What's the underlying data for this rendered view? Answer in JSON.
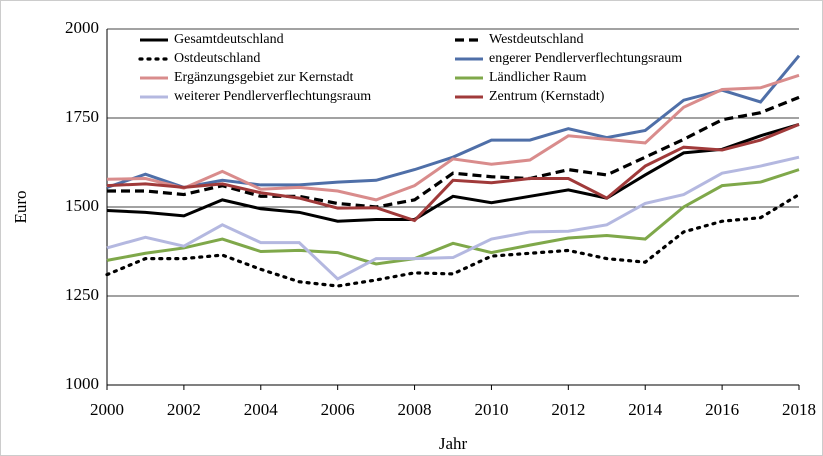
{
  "chart_data": {
    "type": "line",
    "x": [
      2000,
      2001,
      2002,
      2003,
      2004,
      2005,
      2006,
      2007,
      2008,
      2009,
      2010,
      2011,
      2012,
      2013,
      2014,
      2015,
      2016,
      2017,
      2018
    ],
    "xlabel": "Jahr",
    "ylabel": "Euro",
    "xlim": [
      2000,
      2018
    ],
    "xticks": [
      2000,
      2002,
      2004,
      2006,
      2008,
      2010,
      2012,
      2014,
      2016,
      2018
    ],
    "ylim": [
      1000,
      2000
    ],
    "yticks": [
      1000,
      1250,
      1500,
      1750,
      2000
    ],
    "grid": true,
    "series": [
      {
        "name": "Gesamtdeutschland",
        "color": "#000000",
        "style": "solid",
        "values": [
          1490,
          1485,
          1475,
          1520,
          1495,
          1485,
          1460,
          1465,
          1465,
          1530,
          1512,
          1530,
          1548,
          1525,
          1590,
          1652,
          1662,
          1700,
          1732
        ]
      },
      {
        "name": "Westdeutschland",
        "color": "#000000",
        "style": "dashed",
        "values": [
          1545,
          1545,
          1535,
          1560,
          1530,
          1530,
          1510,
          1500,
          1520,
          1595,
          1585,
          1580,
          1605,
          1590,
          1640,
          1690,
          1745,
          1765,
          1808
        ]
      },
      {
        "name": "Ostdeutschland",
        "color": "#000000",
        "style": "dotted",
        "values": [
          1310,
          1355,
          1355,
          1365,
          1325,
          1290,
          1278,
          1295,
          1315,
          1312,
          1362,
          1370,
          1378,
          1355,
          1345,
          1430,
          1460,
          1470,
          1535
        ]
      },
      {
        "name": "engerer Pendlerverflechtungsraum",
        "color": "#4f6fa8",
        "style": "solid",
        "values": [
          1555,
          1592,
          1555,
          1575,
          1562,
          1562,
          1570,
          1575,
          1605,
          1640,
          1688,
          1688,
          1720,
          1695,
          1715,
          1800,
          1828,
          1795,
          1925
        ]
      },
      {
        "name": "Ergänzungsgebiet zur Kernstadt",
        "color": "#d98c8c",
        "style": "solid",
        "values": [
          1578,
          1580,
          1553,
          1600,
          1550,
          1555,
          1545,
          1520,
          1560,
          1635,
          1620,
          1632,
          1700,
          1690,
          1680,
          1780,
          1830,
          1835,
          1870
        ]
      },
      {
        "name": "Ländlicher Raum",
        "color": "#7fa84a",
        "style": "solid",
        "values": [
          1350,
          1370,
          1385,
          1410,
          1375,
          1378,
          1372,
          1340,
          1355,
          1398,
          1372,
          1393,
          1413,
          1420,
          1410,
          1500,
          1560,
          1570,
          1605
        ]
      },
      {
        "name": "weiterer Pendlerverflechtungsraum",
        "color": "#b4b8e0",
        "style": "solid",
        "values": [
          1385,
          1415,
          1390,
          1450,
          1400,
          1400,
          1298,
          1355,
          1355,
          1358,
          1410,
          1430,
          1432,
          1450,
          1510,
          1535,
          1595,
          1615,
          1640
        ]
      },
      {
        "name": "Zentrum (Kernstadt)",
        "color": "#a03a3a",
        "style": "solid",
        "values": [
          1560,
          1565,
          1555,
          1565,
          1540,
          1525,
          1497,
          1498,
          1462,
          1575,
          1568,
          1580,
          1580,
          1525,
          1615,
          1668,
          1660,
          1688,
          1732
        ]
      }
    ]
  }
}
